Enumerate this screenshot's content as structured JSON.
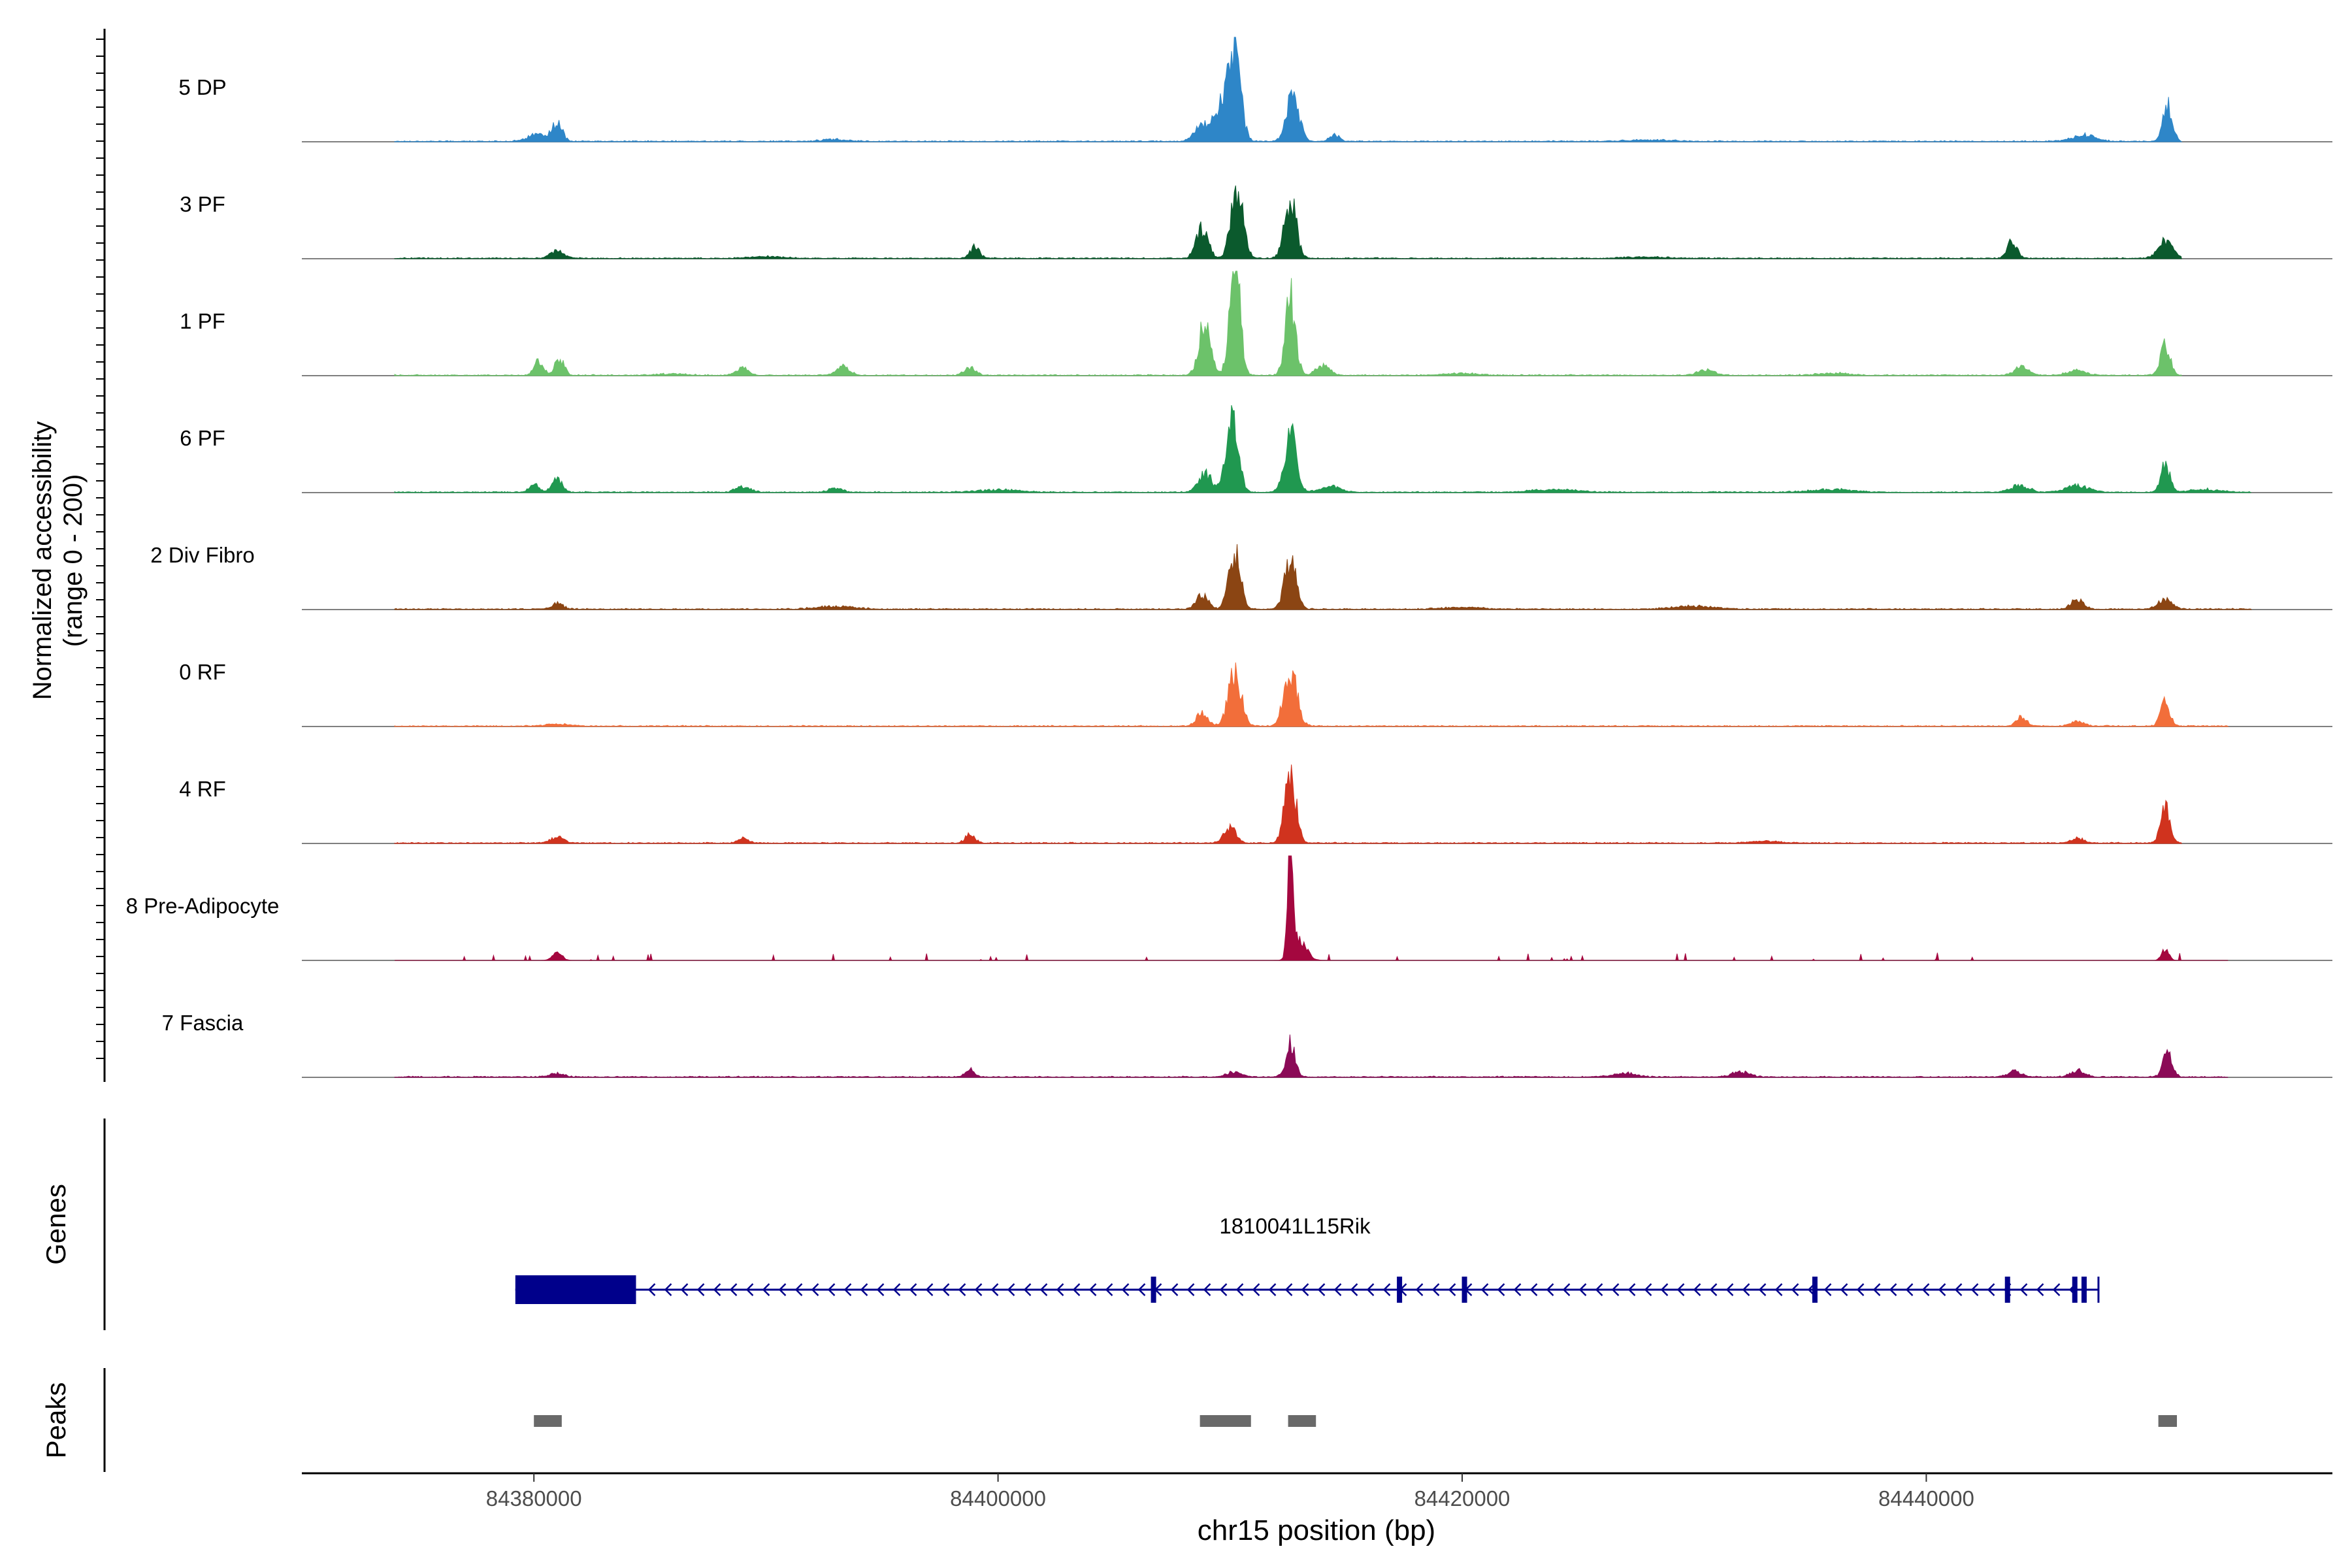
{
  "chart_data": {
    "type": "area",
    "title": "",
    "ylabel_line1": "Normalized accessibility",
    "ylabel_line2": "(range 0 - 200)",
    "ylim": [
      0,
      200
    ],
    "xlabel": "chr15 position (bp)",
    "xlim": [
      84370000,
      84457500
    ],
    "xticks": [
      84380000,
      84400000,
      84420000,
      84440000
    ],
    "xtick_labels": [
      "84380000",
      "84400000",
      "84420000",
      "84440000"
    ],
    "signal_extent": [
      84374000,
      84454000
    ],
    "tracks": [
      {
        "name": "5 DP",
        "color": "#2E86C8",
        "end": 84451000,
        "peaks": [
          [
            84381000,
            40,
            220
          ],
          [
            84380100,
            14,
            400
          ],
          [
            84410200,
            185,
            250
          ],
          [
            84409700,
            90,
            400
          ],
          [
            84412700,
            110,
            260
          ],
          [
            84408700,
            30,
            300
          ],
          [
            84414500,
            14,
            200
          ],
          [
            84450400,
            80,
            200
          ],
          [
            84446800,
            14,
            500
          ],
          [
            84393000,
            4,
            600
          ],
          [
            84428000,
            3,
            900
          ]
        ]
      },
      {
        "name": "3 PF",
        "color": "#0B5A2D",
        "end": 84451000,
        "peaks": [
          [
            84381000,
            15,
            300
          ],
          [
            84399000,
            25,
            200
          ],
          [
            84408800,
            65,
            250
          ],
          [
            84410300,
            150,
            260
          ],
          [
            84412600,
            125,
            250
          ],
          [
            84443700,
            40,
            200
          ],
          [
            84450300,
            40,
            300
          ],
          [
            84390000,
            4,
            700
          ],
          [
            84428000,
            3,
            900
          ]
        ]
      },
      {
        "name": "1 PF",
        "color": "#6CC26A",
        "end": 84451000,
        "peaks": [
          [
            84380200,
            32,
            200
          ],
          [
            84381100,
            35,
            200
          ],
          [
            84389000,
            18,
            250
          ],
          [
            84393300,
            18,
            300
          ],
          [
            84398800,
            16,
            250
          ],
          [
            84408900,
            110,
            250
          ],
          [
            84410200,
            260,
            220
          ],
          [
            84412600,
            165,
            220
          ],
          [
            84414000,
            20,
            300
          ],
          [
            84430500,
            12,
            350
          ],
          [
            84444100,
            18,
            300
          ],
          [
            84450300,
            65,
            200
          ],
          [
            84446500,
            10,
            400
          ],
          [
            84436000,
            4,
            700
          ],
          [
            84420000,
            4,
            700
          ],
          [
            84386000,
            3,
            600
          ]
        ]
      },
      {
        "name": "6 PF",
        "color": "#209850",
        "end": 84454000,
        "peaks": [
          [
            84380000,
            18,
            200
          ],
          [
            84381000,
            28,
            220
          ],
          [
            84389000,
            12,
            300
          ],
          [
            84393000,
            8,
            300
          ],
          [
            84408900,
            40,
            300
          ],
          [
            84410100,
            150,
            260
          ],
          [
            84412600,
            130,
            260
          ],
          [
            84414300,
            14,
            400
          ],
          [
            84444000,
            14,
            400
          ],
          [
            84450300,
            60,
            200
          ],
          [
            84446500,
            14,
            500
          ],
          [
            84452000,
            6,
            600
          ],
          [
            84424000,
            6,
            900
          ],
          [
            84436000,
            6,
            900
          ],
          [
            84400000,
            5,
            900
          ]
        ]
      },
      {
        "name": "2 Div Fibro",
        "color": "#8B4513",
        "end": 84454000,
        "peaks": [
          [
            84381000,
            12,
            250
          ],
          [
            84408800,
            30,
            250
          ],
          [
            84410200,
            120,
            250
          ],
          [
            84412600,
            110,
            250
          ],
          [
            84446500,
            22,
            250
          ],
          [
            84450300,
            20,
            300
          ],
          [
            84393000,
            6,
            800
          ],
          [
            84430000,
            6,
            900
          ],
          [
            84420000,
            4,
            800
          ]
        ]
      },
      {
        "name": "0 RF",
        "color": "#F26E3A",
        "end": 84453000,
        "peaks": [
          [
            84408800,
            30,
            250
          ],
          [
            84410200,
            110,
            280
          ],
          [
            84412600,
            120,
            280
          ],
          [
            84444100,
            22,
            200
          ],
          [
            84446500,
            10,
            300
          ],
          [
            84450300,
            50,
            200
          ],
          [
            84381000,
            4,
            500
          ]
        ]
      },
      {
        "name": "4 RF",
        "color": "#D0331E",
        "end": 84451000,
        "peaks": [
          [
            84381000,
            12,
            300
          ],
          [
            84389000,
            12,
            200
          ],
          [
            84398800,
            20,
            200
          ],
          [
            84410000,
            35,
            250
          ],
          [
            84412600,
            150,
            240
          ],
          [
            84446500,
            10,
            300
          ],
          [
            84450300,
            75,
            200
          ],
          [
            84433000,
            4,
            700
          ]
        ]
      },
      {
        "name": "8 Pre-Adipocyte",
        "color": "#A4073F",
        "end": 84453000,
        "sparse": true,
        "peaks": [
          [
            84412600,
            225,
            120
          ],
          [
            84413000,
            40,
            300
          ],
          [
            84381000,
            18,
            200
          ],
          [
            84450300,
            26,
            150
          ]
        ]
      },
      {
        "name": "7 Fascia",
        "color": "#8B0A57",
        "end": 84453000,
        "peaks": [
          [
            84412600,
            70,
            200
          ],
          [
            84410200,
            12,
            300
          ],
          [
            84398800,
            16,
            200
          ],
          [
            84381000,
            8,
            300
          ],
          [
            84450400,
            50,
            200
          ],
          [
            84446500,
            14,
            300
          ],
          [
            84443800,
            12,
            300
          ],
          [
            84432000,
            10,
            400
          ],
          [
            84427000,
            8,
            500
          ]
        ]
      }
    ],
    "genes_label": "Genes",
    "gene": {
      "name": "1810041L15Rik",
      "start": 84379200,
      "end": 84446800,
      "strand": "-",
      "color": "#00008B",
      "utr": [
        84379200,
        84384400
      ],
      "exons": [
        84406700,
        84417300,
        84420100,
        84435200,
        84443500,
        84446400,
        84446800
      ]
    },
    "peaks_label": "Peaks",
    "peak_regions": [
      [
        84380000,
        84381200
      ],
      [
        84408700,
        84410900
      ],
      [
        84412500,
        84413700
      ],
      [
        84450000,
        84450800
      ]
    ],
    "peak_color": "#696969"
  }
}
